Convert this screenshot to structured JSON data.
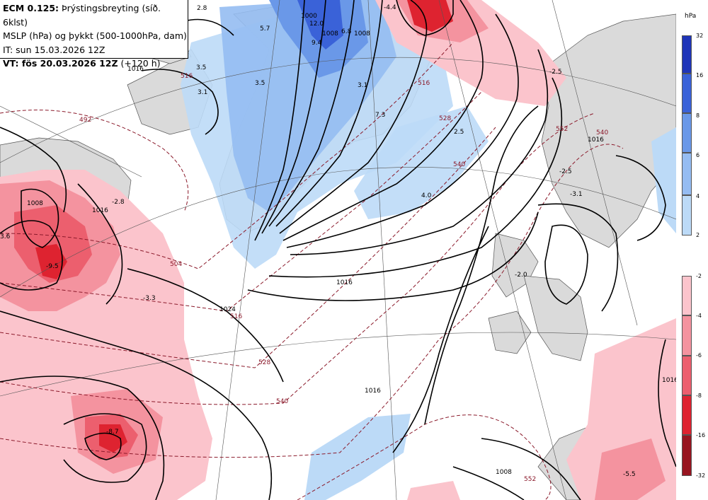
{
  "header": {
    "line1_bold": "ECM 0.125:",
    "line1_rest": " Þrýstingsbreyting (síð. 6klst)",
    "line2": "MSLP (hPa) og þykkt (500-1000hPa, dam)",
    "line3": "IT: sun 15.03.2026 12Z",
    "line4_bold": "VT: fös 20.03.2026 12Z",
    "line4_rest": " (+120 h)"
  },
  "legend": {
    "unit": "hPa",
    "blue_ticks": [
      "32",
      "16",
      "8",
      "6",
      "4",
      "2"
    ],
    "red_ticks": [
      "-2",
      "-4",
      "-6",
      "-8",
      "-16",
      "-32"
    ],
    "blue_colors": [
      "#1f35b8",
      "#3a62d8",
      "#6a98e8",
      "#95bcf2",
      "#bcdaf7"
    ],
    "red_colors": [
      "#fbc4cc",
      "#f4939f",
      "#ec5f6e",
      "#de2330",
      "#981520"
    ]
  },
  "map": {
    "isobar_labels": [
      "1016",
      "1016",
      "1016",
      "1016",
      "1008",
      "1008",
      "1000",
      "1008",
      "1024",
      "1016",
      "1016",
      "1008"
    ],
    "thickness_labels": [
      "492",
      "504",
      "516",
      "528",
      "528",
      "540",
      "540",
      "540",
      "552",
      "516",
      "552",
      "516"
    ],
    "tendency_values": [
      "2.8",
      "5.7",
      "12.0",
      "9.4",
      "6.8",
      "3.5",
      "3.1",
      "3.5",
      "3.1",
      "7.3",
      "2.5",
      "4.0",
      "-4.4",
      "-2.5",
      "-2.8",
      "3.6",
      "-9.5",
      "-3.3",
      "-8.7",
      "-2.0",
      "-3.1",
      "-5.5",
      "-2.5"
    ]
  }
}
